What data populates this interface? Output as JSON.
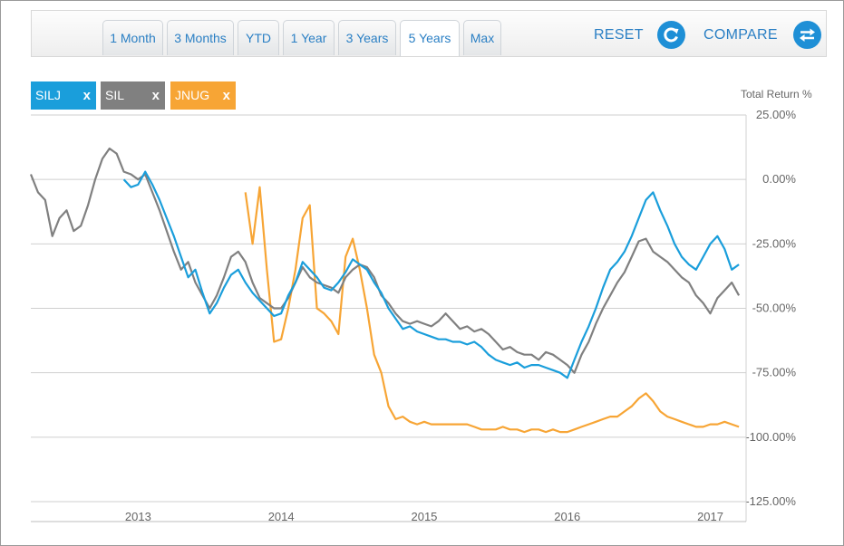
{
  "toolbar": {
    "tabs": [
      "1 Month",
      "3 Months",
      "YTD",
      "1 Year",
      "3 Years",
      "5 Years",
      "Max"
    ],
    "active_tab": "5 Years",
    "reset_label": "RESET",
    "compare_label": "COMPARE"
  },
  "chips": [
    {
      "label": "SILJ",
      "close": "x",
      "color": "#1a9edb"
    },
    {
      "label": "SIL",
      "close": "x",
      "color": "#808080"
    },
    {
      "label": "JNUG",
      "close": "x",
      "color": "#f7a535"
    }
  ],
  "chart_data": {
    "type": "line",
    "ylabel": "Total Return %",
    "ylim": [
      -125,
      25
    ],
    "yticks": [
      25,
      0,
      -25,
      -50,
      -75,
      -100,
      -125
    ],
    "ytick_labels": [
      "25.00%",
      "0.00%",
      "-25.00%",
      "-50.00%",
      "-75.00%",
      "-100.00%",
      "-125.00%"
    ],
    "xlim": [
      2012.25,
      2017.25
    ],
    "xticks": [
      2013,
      2014,
      2015,
      2016,
      2017
    ],
    "xtick_labels": [
      "2013",
      "2014",
      "2015",
      "2016",
      "2017"
    ],
    "grid": true,
    "series": [
      {
        "name": "SILJ",
        "color": "#1a9edb",
        "x": [
          2012.9,
          2012.95,
          2013.0,
          2013.05,
          2013.1,
          2013.15,
          2013.2,
          2013.25,
          2013.3,
          2013.35,
          2013.4,
          2013.45,
          2013.5,
          2013.55,
          2013.6,
          2013.65,
          2013.7,
          2013.75,
          2013.8,
          2013.85,
          2013.9,
          2013.95,
          2014.0,
          2014.05,
          2014.1,
          2014.15,
          2014.2,
          2014.25,
          2014.3,
          2014.35,
          2014.4,
          2014.45,
          2014.5,
          2014.55,
          2014.6,
          2014.65,
          2014.7,
          2014.75,
          2014.8,
          2014.85,
          2014.9,
          2014.95,
          2015.0,
          2015.05,
          2015.1,
          2015.15,
          2015.2,
          2015.25,
          2015.3,
          2015.35,
          2015.4,
          2015.45,
          2015.5,
          2015.55,
          2015.6,
          2015.65,
          2015.7,
          2015.75,
          2015.8,
          2015.85,
          2015.9,
          2015.95,
          2016.0,
          2016.05,
          2016.1,
          2016.15,
          2016.2,
          2016.25,
          2016.3,
          2016.35,
          2016.4,
          2016.45,
          2016.5,
          2016.55,
          2016.6,
          2016.65,
          2016.7,
          2016.75,
          2016.8,
          2016.85,
          2016.9,
          2016.95,
          2017.0,
          2017.05,
          2017.1,
          2017.15,
          2017.2
        ],
        "y": [
          0,
          -3,
          -2,
          3,
          -2,
          -8,
          -15,
          -22,
          -30,
          -38,
          -35,
          -44,
          -52,
          -48,
          -42,
          -37,
          -35,
          -40,
          -44,
          -47,
          -50,
          -53,
          -52,
          -45,
          -40,
          -32,
          -35,
          -38,
          -42,
          -43,
          -40,
          -36,
          -31,
          -33,
          -35,
          -40,
          -44,
          -50,
          -54,
          -58,
          -57,
          -59,
          -60,
          -61,
          -62,
          -62,
          -63,
          -63,
          -64,
          -63,
          -65,
          -68,
          -70,
          -71,
          -72,
          -71,
          -73,
          -72,
          -72,
          -73,
          -74,
          -75,
          -77,
          -70,
          -63,
          -57,
          -50,
          -42,
          -35,
          -32,
          -28,
          -22,
          -15,
          -8,
          -5,
          -12,
          -18,
          -25,
          -30,
          -33,
          -35,
          -30,
          -25,
          -22,
          -27,
          -35,
          -33
        ]
      },
      {
        "name": "SIL",
        "color": "#808080",
        "x": [
          2012.25,
          2012.3,
          2012.35,
          2012.4,
          2012.45,
          2012.5,
          2012.55,
          2012.6,
          2012.65,
          2012.7,
          2012.75,
          2012.8,
          2012.85,
          2012.9,
          2012.95,
          2013.0,
          2013.05,
          2013.1,
          2013.15,
          2013.2,
          2013.25,
          2013.3,
          2013.35,
          2013.4,
          2013.45,
          2013.5,
          2013.55,
          2013.6,
          2013.65,
          2013.7,
          2013.75,
          2013.8,
          2013.85,
          2013.9,
          2013.95,
          2014.0,
          2014.05,
          2014.1,
          2014.15,
          2014.2,
          2014.25,
          2014.3,
          2014.35,
          2014.4,
          2014.45,
          2014.5,
          2014.55,
          2014.6,
          2014.65,
          2014.7,
          2014.75,
          2014.8,
          2014.85,
          2014.9,
          2014.95,
          2015.0,
          2015.05,
          2015.1,
          2015.15,
          2015.2,
          2015.25,
          2015.3,
          2015.35,
          2015.4,
          2015.45,
          2015.5,
          2015.55,
          2015.6,
          2015.65,
          2015.7,
          2015.75,
          2015.8,
          2015.85,
          2015.9,
          2015.95,
          2016.0,
          2016.05,
          2016.1,
          2016.15,
          2016.2,
          2016.25,
          2016.3,
          2016.35,
          2016.4,
          2016.45,
          2016.5,
          2016.55,
          2016.6,
          2016.65,
          2016.7,
          2016.75,
          2016.8,
          2016.85,
          2016.9,
          2016.95,
          2017.0,
          2017.05,
          2017.1,
          2017.15,
          2017.2
        ],
        "y": [
          2,
          -5,
          -8,
          -22,
          -15,
          -12,
          -20,
          -18,
          -10,
          0,
          8,
          12,
          10,
          3,
          2,
          0,
          2,
          -5,
          -12,
          -20,
          -28,
          -35,
          -32,
          -40,
          -45,
          -50,
          -45,
          -38,
          -30,
          -28,
          -32,
          -40,
          -46,
          -48,
          -50,
          -50,
          -46,
          -40,
          -34,
          -38,
          -40,
          -41,
          -42,
          -44,
          -38,
          -35,
          -33,
          -34,
          -38,
          -45,
          -48,
          -52,
          -55,
          -56,
          -55,
          -56,
          -57,
          -55,
          -52,
          -55,
          -58,
          -57,
          -59,
          -58,
          -60,
          -63,
          -66,
          -65,
          -67,
          -68,
          -68,
          -70,
          -67,
          -68,
          -70,
          -72,
          -75,
          -68,
          -63,
          -56,
          -50,
          -45,
          -40,
          -36,
          -30,
          -24,
          -23,
          -28,
          -30,
          -32,
          -35,
          -38,
          -40,
          -45,
          -48,
          -52,
          -46,
          -43,
          -40,
          -45
        ]
      },
      {
        "name": "JNUG",
        "color": "#f7a535",
        "x": [
          2013.75,
          2013.8,
          2013.85,
          2013.9,
          2013.95,
          2014.0,
          2014.05,
          2014.1,
          2014.15,
          2014.2,
          2014.25,
          2014.3,
          2014.35,
          2014.4,
          2014.45,
          2014.5,
          2014.55,
          2014.6,
          2014.65,
          2014.7,
          2014.75,
          2014.8,
          2014.85,
          2014.9,
          2014.95,
          2015.0,
          2015.05,
          2015.1,
          2015.15,
          2015.2,
          2015.25,
          2015.3,
          2015.35,
          2015.4,
          2015.45,
          2015.5,
          2015.55,
          2015.6,
          2015.65,
          2015.7,
          2015.75,
          2015.8,
          2015.85,
          2015.9,
          2015.95,
          2016.0,
          2016.05,
          2016.1,
          2016.15,
          2016.2,
          2016.25,
          2016.3,
          2016.35,
          2016.4,
          2016.45,
          2016.5,
          2016.55,
          2016.6,
          2016.65,
          2016.7,
          2016.75,
          2016.8,
          2016.85,
          2016.9,
          2016.95,
          2017.0,
          2017.05,
          2017.1,
          2017.15,
          2017.2
        ],
        "y": [
          -5,
          -25,
          -3,
          -35,
          -63,
          -62,
          -50,
          -35,
          -15,
          -10,
          -50,
          -52,
          -55,
          -60,
          -30,
          -23,
          -35,
          -50,
          -68,
          -75,
          -88,
          -93,
          -92,
          -94,
          -95,
          -94,
          -95,
          -95,
          -95,
          -95,
          -95,
          -95,
          -96,
          -97,
          -97,
          -97,
          -96,
          -97,
          -97,
          -98,
          -97,
          -97,
          -98,
          -97,
          -98,
          -98,
          -97,
          -96,
          -95,
          -94,
          -93,
          -92,
          -92,
          -90,
          -88,
          -85,
          -83,
          -86,
          -90,
          -92,
          -93,
          -94,
          -95,
          -96,
          -96,
          -95,
          -95,
          -94,
          -95,
          -96
        ]
      }
    ]
  }
}
